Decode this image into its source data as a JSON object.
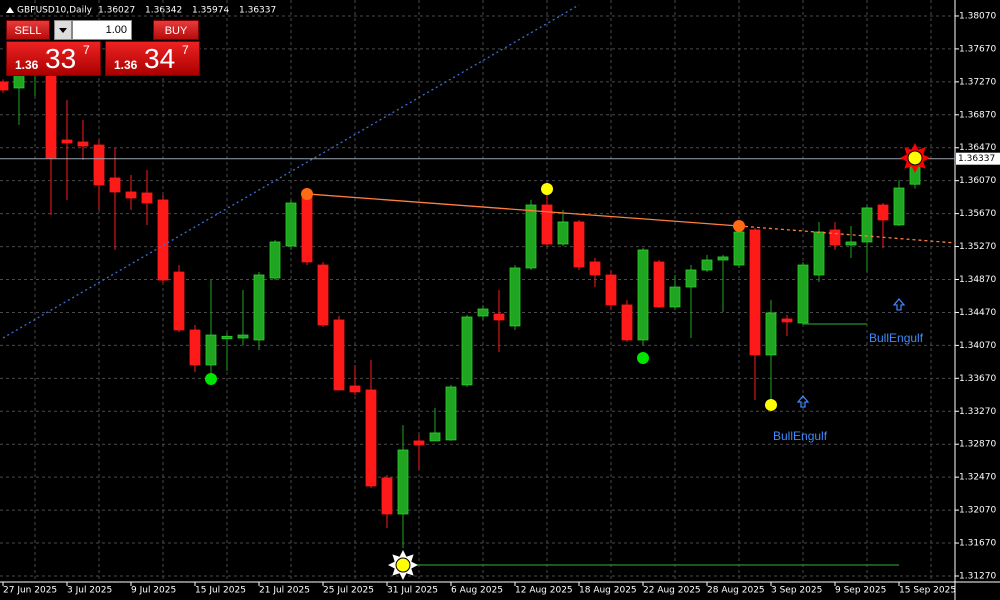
{
  "chart_data": {
    "type": "candlestick",
    "title": "GBPUSD10,Daily",
    "ohlc": [
      1.36027,
      1.36342,
      1.35974,
      1.36337
    ],
    "categories": [
      "27 Jun 2025",
      null,
      null,
      null,
      "3 Jul 2025",
      null,
      null,
      null,
      "9 Jul 2025",
      null,
      null,
      null,
      "15 Jul 2025",
      null,
      null,
      null,
      "21 Jul 2025",
      null,
      null,
      null,
      "25 Jul 2025",
      null,
      null,
      null,
      "31 Jul 2025",
      null,
      null,
      null,
      "6 Aug 2025",
      null,
      null,
      null,
      "12 Aug 2025",
      null,
      null,
      null,
      "18 Aug 2025",
      null,
      null,
      null,
      "22 Aug 2025",
      null,
      null,
      null,
      "28 Aug 2025",
      null,
      null,
      null,
      "3 Sep 2025",
      null,
      null,
      null,
      "9 Sep 2025",
      null,
      null,
      null,
      "15 Sep 2025",
      null
    ],
    "open": [
      1.37269,
      1.37196,
      1.3736,
      1.37354,
      1.36564,
      1.3654,
      1.36503,
      1.36103,
      1.35933,
      1.35921,
      1.35836,
      1.34961,
      1.34257,
      1.33832,
      1.3415,
      1.3416,
      1.34136,
      1.34888,
      1.35277,
      1.35896,
      1.35046,
      1.34379,
      1.33577,
      1.33529,
      1.3246,
      1.32023,
      1.3291,
      1.3291,
      1.32922,
      1.3359,
      1.34427,
      1.34451,
      1.34306,
      1.3501,
      1.35775,
      1.35301,
      1.35569,
      1.35083,
      1.34925,
      1.34561,
      1.34136,
      1.35083,
      1.34537,
      1.34779,
      1.34985,
      1.35107,
      1.35046,
      1.35472,
      1.33954,
      1.34391,
      1.34342,
      1.34925,
      1.35472,
      1.35289,
      1.35326,
      1.35775,
      1.35533,
      1.36027
    ],
    "high": [
      1.373,
      1.37536,
      1.3744,
      1.37414,
      1.3705,
      1.36807,
      1.36564,
      1.36467,
      1.36139,
      1.362,
      1.35896,
      1.35046,
      1.34318,
      1.34864,
      1.3422,
      1.34743,
      1.34961,
      1.3535,
      1.35836,
      1.35957,
      1.35083,
      1.34427,
      1.33832,
      1.33893,
      1.32497,
      1.33104,
      1.32982,
      1.3331,
      1.3359,
      1.34439,
      1.34561,
      1.34743,
      1.35046,
      1.35836,
      1.35957,
      1.35714,
      1.35593,
      1.35131,
      1.34985,
      1.34622,
      1.35253,
      1.35107,
      1.34925,
      1.35046,
      1.35168,
      1.35168,
      1.35496,
      1.35496,
      1.34622,
      1.3444,
      1.35083,
      1.35569,
      1.35569,
      1.3552,
      1.35775,
      1.35799,
      1.36079,
      1.36342
    ],
    "low": [
      1.3714,
      1.36747,
      1.371,
      1.35654,
      1.35836,
      1.36321,
      1.35714,
      1.35229,
      1.35714,
      1.35532,
      1.34828,
      1.3423,
      1.33747,
      1.3365,
      1.3376,
      1.34075,
      1.34014,
      1.34864,
      1.35229,
      1.35046,
      1.34294,
      1.33529,
      1.33468,
      1.32339,
      1.31853,
      1.3161,
      1.32557,
      1.3291,
      1.3291,
      1.33565,
      1.34379,
      1.3399,
      1.34257,
      1.34985,
      1.35277,
      1.35277,
      1.34985,
      1.34779,
      1.345,
      1.34112,
      1.34075,
      1.34524,
      1.345,
      1.3416,
      1.34961,
      1.34476,
      1.3501,
      1.33407,
      1.33347,
      1.34185,
      1.34318,
      1.3484,
      1.35229,
      1.35131,
      1.34961,
      1.35253,
      1.3552,
      1.35974
    ],
    "close": [
      1.37171,
      1.37354,
      1.3738,
      1.36346,
      1.36528,
      1.36491,
      1.36018,
      1.35933,
      1.3586,
      1.35799,
      1.34864,
      1.34257,
      1.33832,
      1.34196,
      1.3418,
      1.34196,
      1.34925,
      1.35326,
      1.35799,
      1.35083,
      1.34318,
      1.33529,
      1.33505,
      1.32363,
      1.32023,
      1.328,
      1.32861,
      1.33007,
      1.33565,
      1.34415,
      1.34512,
      1.34379,
      1.3501,
      1.35775,
      1.35301,
      1.35569,
      1.35022,
      1.34925,
      1.34561,
      1.34136,
      1.35229,
      1.34537,
      1.34779,
      1.34986,
      1.35107,
      1.35144,
      1.35447,
      1.33954,
      1.34464,
      1.34355,
      1.35046,
      1.35447,
      1.35289,
      1.35326,
      1.35739,
      1.35593,
      1.35981,
      1.36337
    ],
    "up_color": "#1fa51f",
    "down_color": "#ff1a1a",
    "ylim": [
      1.31197,
      1.38264
    ],
    "yticks": [
      {
        "value": 1.3807,
        "label": "1.38070"
      },
      {
        "value": 1.3767,
        "label": "1.37670"
      },
      {
        "value": 1.3727,
        "label": "1.37270"
      },
      {
        "value": 1.3687,
        "label": "1.36870"
      },
      {
        "value": 1.3647,
        "label": "1.36470"
      },
      {
        "value": 1.3607,
        "label": "1.36070"
      },
      {
        "value": 1.3567,
        "label": "1.35670"
      },
      {
        "value": 1.3527,
        "label": "1.35270"
      },
      {
        "value": 1.3487,
        "label": "1.34870"
      },
      {
        "value": 1.3447,
        "label": "1.34470"
      },
      {
        "value": 1.3407,
        "label": "1.34070"
      },
      {
        "value": 1.3367,
        "label": "1.33670"
      },
      {
        "value": 1.3327,
        "label": "1.33270"
      },
      {
        "value": 1.3287,
        "label": "1.32870"
      },
      {
        "value": 1.3247,
        "label": "1.32470"
      },
      {
        "value": 1.3207,
        "label": "1.32070"
      },
      {
        "value": 1.3167,
        "label": "1.31670"
      },
      {
        "value": 1.3127,
        "label": "1.31270"
      }
    ],
    "grid": true,
    "price_line": 1.36337,
    "lines": [
      {
        "start_index": 0,
        "start_price": 1.3416,
        "end_index": 36,
        "end_price": 1.38204,
        "color": "#3b6fd6",
        "dash": "2 3"
      },
      {
        "start_index": 19,
        "start_price": 1.35909,
        "end_index": 46,
        "end_price": 1.3552,
        "color": "#ff7f3f",
        "dash": "none"
      },
      {
        "start_index": 46,
        "start_price": 1.3552,
        "end_index": 59.5,
        "end_price": 1.35314,
        "color": "#ff7f3f",
        "dash": "3 3"
      },
      {
        "start_index": 25,
        "start_price": 1.31403,
        "end_index": 56,
        "end_price": 1.31403,
        "color": "#2e8b2e",
        "dash": "none"
      },
      {
        "start_index": 50,
        "start_price": 1.3433,
        "end_index": 54,
        "end_price": 1.3433,
        "color": "#2e8b2e",
        "dash": "none"
      }
    ],
    "markers": [
      {
        "index": 13,
        "price": 1.33662,
        "color": "#00e600",
        "shape": "dot"
      },
      {
        "index": 40,
        "price": 1.33917,
        "color": "#00e600",
        "shape": "dot"
      },
      {
        "index": 34,
        "price": 1.35969,
        "color": "#ffff00",
        "shape": "dot"
      },
      {
        "index": 48,
        "price": 1.33347,
        "color": "#ffff00",
        "shape": "dot"
      },
      {
        "index": 19,
        "price": 1.35909,
        "color": "#ff6a13",
        "shape": "dot"
      },
      {
        "index": 46,
        "price": 1.3552,
        "color": "#ff6a13",
        "shape": "dot"
      },
      {
        "index": 25,
        "price": 1.31403,
        "color": "#ffff00",
        "shape": "star",
        "rays": "#ffffff"
      },
      {
        "index": 57,
        "price": 1.36346,
        "color": "#ffff00",
        "shape": "star",
        "rays": "#ff0000"
      },
      {
        "index": 50,
        "price": 1.33383,
        "color": "#3c8cff",
        "shape": "arrow"
      },
      {
        "index": 56,
        "price": 1.34561,
        "color": "#3c8cff",
        "shape": "arrow"
      }
    ],
    "annotations": [
      {
        "text": "BullEngulf",
        "index": 48,
        "price": 1.32958
      },
      {
        "text": "BullEngulf",
        "index": 54,
        "price": 1.34148
      }
    ]
  },
  "trade_panel": {
    "sell": "SELL",
    "lot": "1.00",
    "buy": "BUY",
    "sell_price": {
      "big": "1.36",
      "pips": "33",
      "point": "7"
    },
    "buy_price": {
      "big": "1.36",
      "pips": "34",
      "point": "7"
    }
  }
}
